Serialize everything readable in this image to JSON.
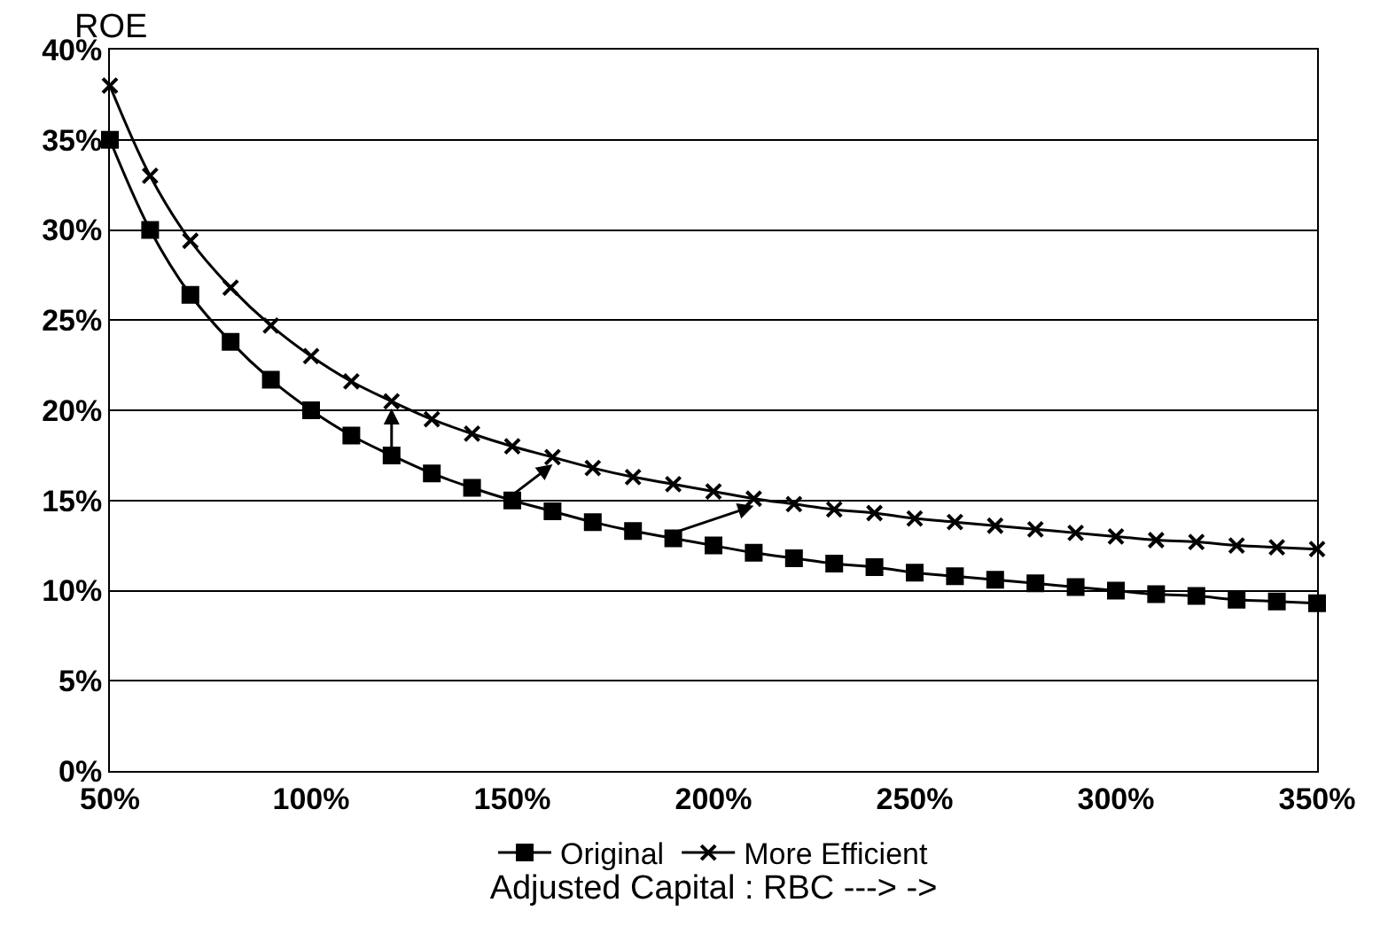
{
  "chart_data": {
    "type": "line",
    "ylabel": "ROE",
    "xlabel": "Adjusted Capital : RBC ---> ->",
    "x": [
      50,
      60,
      70,
      80,
      90,
      100,
      110,
      120,
      130,
      140,
      150,
      160,
      170,
      180,
      190,
      200,
      210,
      220,
      230,
      240,
      250,
      260,
      270,
      280,
      290,
      300,
      310,
      320,
      330,
      340,
      350
    ],
    "series": [
      {
        "name": "Original",
        "color": "#000000",
        "marker": "square",
        "values": [
          35,
          30,
          26.4,
          23.8,
          21.7,
          20,
          18.6,
          17.5,
          16.5,
          15.7,
          15,
          14.4,
          13.8,
          13.3,
          12.9,
          12.5,
          12.1,
          11.8,
          11.5,
          11.3,
          11,
          10.8,
          10.6,
          10.4,
          10.2,
          10,
          9.8,
          9.7,
          9.5,
          9.4,
          9.3
        ]
      },
      {
        "name": "More Efficient",
        "color": "#000000",
        "marker": "cross",
        "values": [
          38,
          33,
          29.4,
          26.8,
          24.7,
          23,
          21.6,
          20.5,
          19.5,
          18.7,
          18,
          17.4,
          16.8,
          16.3,
          15.9,
          15.5,
          15.1,
          14.8,
          14.5,
          14.3,
          14,
          13.8,
          13.6,
          13.4,
          13.2,
          13,
          12.8,
          12.7,
          12.5,
          12.4,
          12.3
        ]
      }
    ],
    "xlim": [
      50,
      350
    ],
    "xticks": [
      {
        "value": 50,
        "label": "50%"
      },
      {
        "value": 100,
        "label": "100%"
      },
      {
        "value": 150,
        "label": "150%"
      },
      {
        "value": 200,
        "label": "200%"
      },
      {
        "value": 250,
        "label": "250%"
      },
      {
        "value": 300,
        "label": "300%"
      },
      {
        "value": 350,
        "label": "350%"
      }
    ],
    "ylim": [
      0,
      40
    ],
    "yticks": [
      {
        "value": 0,
        "label": "0%"
      },
      {
        "value": 5,
        "label": "5%"
      },
      {
        "value": 10,
        "label": "10%"
      },
      {
        "value": 15,
        "label": "15%"
      },
      {
        "value": 20,
        "label": "20%"
      },
      {
        "value": 25,
        "label": "25%"
      },
      {
        "value": 30,
        "label": "30%"
      },
      {
        "value": 35,
        "label": "35%"
      },
      {
        "value": 40,
        "label": "40%"
      }
    ],
    "grid": "y",
    "legend": "bottom",
    "line_style": "solid"
  }
}
